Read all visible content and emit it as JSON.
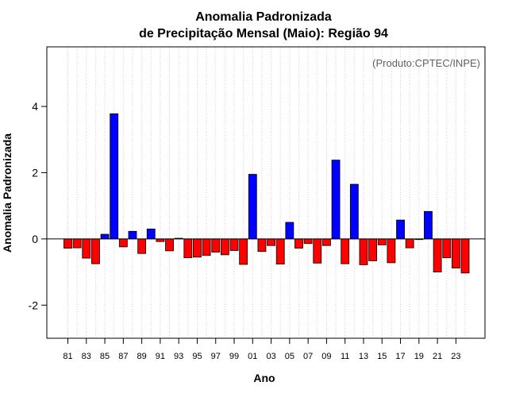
{
  "chart_data": {
    "type": "bar",
    "title": "Anomalia Padronizada",
    "subtitle": "de Precipitação Mensal (Maio): Região 94",
    "xlabel": "Ano",
    "ylabel": "Anomalia Padronizada",
    "credit": "(Produto:CPTEC/INPE)",
    "ylim": [
      -3.0,
      5.8
    ],
    "yticks": [
      -2,
      0,
      2,
      4
    ],
    "ytick_labels": [
      "-2",
      "0",
      "2",
      "4"
    ],
    "grid": "vertical-dotted",
    "positive_color": "#0000ff",
    "negative_color": "#ff0000",
    "categories": [
      "81",
      "82",
      "83",
      "84",
      "85",
      "86",
      "87",
      "88",
      "89",
      "90",
      "91",
      "92",
      "93",
      "94",
      "95",
      "96",
      "97",
      "98",
      "99",
      "00",
      "01",
      "02",
      "03",
      "04",
      "05",
      "06",
      "07",
      "08",
      "09",
      "10",
      "11",
      "12",
      "13",
      "14",
      "15",
      "16",
      "17",
      "18",
      "19",
      "20",
      "21",
      "22",
      "23",
      "24"
    ],
    "xtick_labels": [
      "81",
      "83",
      "85",
      "87",
      "89",
      "91",
      "93",
      "95",
      "97",
      "99",
      "01",
      "03",
      "05",
      "07",
      "09",
      "11",
      "13",
      "15",
      "17",
      "19",
      "21",
      "23"
    ],
    "values": [
      -0.28,
      -0.27,
      -0.58,
      -0.75,
      0.14,
      3.78,
      -0.24,
      0.23,
      -0.44,
      0.3,
      -0.08,
      -0.36,
      0.02,
      -0.57,
      -0.55,
      -0.5,
      -0.4,
      -0.48,
      -0.35,
      -0.77,
      1.95,
      -0.38,
      -0.2,
      -0.76,
      0.5,
      -0.28,
      -0.14,
      -0.73,
      -0.2,
      2.38,
      -0.75,
      1.65,
      -0.78,
      -0.66,
      -0.18,
      -0.72,
      0.57,
      -0.27,
      -0.02,
      0.83,
      -1.0,
      -0.57,
      -0.88,
      -1.03
    ]
  }
}
